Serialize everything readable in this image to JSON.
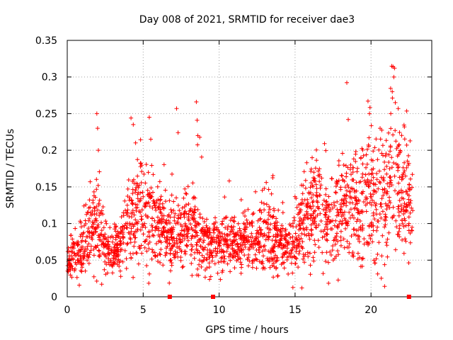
{
  "chart_data": {
    "type": "scatter",
    "title": "Day 008 of 2021, SRMTID for receiver dae3",
    "xlabel": "GPS time / hours",
    "ylabel": "SRMTID / TECUs",
    "xlim": [
      0,
      24
    ],
    "ylim": [
      0,
      0.35
    ],
    "x_ticks": [
      0,
      5,
      10,
      15,
      20
    ],
    "x_tick_labels": [
      "0",
      "5",
      "10",
      "15",
      "20"
    ],
    "y_ticks": [
      0,
      0.05,
      0.1,
      0.15,
      0.2,
      0.25,
      0.3,
      0.35
    ],
    "y_tick_labels": [
      "0",
      "0.05",
      "0.1",
      "0.15",
      "0.2",
      "0.25",
      "0.3",
      "0.35"
    ],
    "grid": true,
    "marker": "+",
    "color": "#ff0000",
    "zero_markers_x": [
      6.75,
      9.6,
      22.5
    ],
    "profile": {
      "x": [
        0,
        0.5,
        1.0,
        1.5,
        2.0,
        2.5,
        3.0,
        3.5,
        4.0,
        4.5,
        5.0,
        5.5,
        6.0,
        6.5,
        7.0,
        7.5,
        8.0,
        8.5,
        9.0,
        9.5,
        10.0,
        10.5,
        11.0,
        11.5,
        12.0,
        12.5,
        13.0,
        13.5,
        14.0,
        14.5,
        15.0,
        15.5,
        16.0,
        16.5,
        17.0,
        17.5,
        18.0,
        18.5,
        19.0,
        19.5,
        20.0,
        20.5,
        21.0,
        21.5,
        22.0,
        22.5
      ],
      "median": [
        0.045,
        0.058,
        0.065,
        0.09,
        0.1,
        0.065,
        0.06,
        0.07,
        0.1,
        0.12,
        0.11,
        0.1,
        0.1,
        0.085,
        0.08,
        0.085,
        0.095,
        0.09,
        0.075,
        0.07,
        0.07,
        0.075,
        0.075,
        0.07,
        0.075,
        0.08,
        0.09,
        0.09,
        0.075,
        0.07,
        0.08,
        0.1,
        0.11,
        0.13,
        0.11,
        0.1,
        0.12,
        0.13,
        0.13,
        0.12,
        0.14,
        0.13,
        0.14,
        0.16,
        0.15,
        0.13
      ],
      "spread": [
        0.015,
        0.02,
        0.025,
        0.035,
        0.05,
        0.02,
        0.02,
        0.025,
        0.04,
        0.05,
        0.05,
        0.045,
        0.04,
        0.03,
        0.035,
        0.035,
        0.04,
        0.04,
        0.03,
        0.025,
        0.025,
        0.025,
        0.025,
        0.025,
        0.025,
        0.03,
        0.035,
        0.035,
        0.025,
        0.025,
        0.03,
        0.04,
        0.045,
        0.05,
        0.045,
        0.045,
        0.05,
        0.05,
        0.055,
        0.06,
        0.055,
        0.06,
        0.06,
        0.07,
        0.06,
        0.05
      ]
    },
    "peaks": [
      {
        "x": 1.95,
        "y": 0.25
      },
      {
        "x": 2.0,
        "y": 0.23
      },
      {
        "x": 2.05,
        "y": 0.2
      },
      {
        "x": 4.2,
        "y": 0.244
      },
      {
        "x": 4.35,
        "y": 0.235
      },
      {
        "x": 4.5,
        "y": 0.21
      },
      {
        "x": 5.4,
        "y": 0.245
      },
      {
        "x": 5.5,
        "y": 0.215
      },
      {
        "x": 7.2,
        "y": 0.257
      },
      {
        "x": 7.3,
        "y": 0.224
      },
      {
        "x": 8.5,
        "y": 0.266
      },
      {
        "x": 8.55,
        "y": 0.241
      },
      {
        "x": 8.6,
        "y": 0.22
      },
      {
        "x": 18.5,
        "y": 0.242
      },
      {
        "x": 19.8,
        "y": 0.267
      },
      {
        "x": 19.9,
        "y": 0.25
      },
      {
        "x": 21.45,
        "y": 0.314
      },
      {
        "x": 21.55,
        "y": 0.312
      },
      {
        "x": 21.5,
        "y": 0.3
      },
      {
        "x": 21.4,
        "y": 0.28
      },
      {
        "x": 21.6,
        "y": 0.265
      },
      {
        "x": 21.3,
        "y": 0.25
      },
      {
        "x": 20.6,
        "y": 0.23
      }
    ],
    "point_count": 2200
  }
}
